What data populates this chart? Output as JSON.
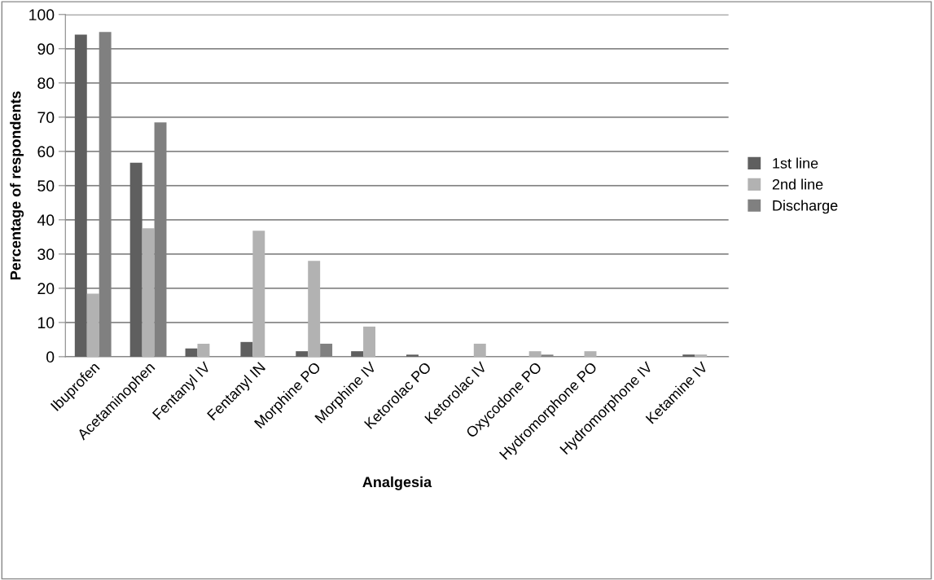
{
  "chart_data": {
    "type": "bar",
    "xlabel": "Analgesia",
    "ylabel": "Percentage of respondents",
    "categories": [
      "Ibuprofen",
      "Acetaminophen",
      "Fentanyl IV",
      "Fentanyl IN",
      "Morphine PO",
      "Morphine IV",
      "Ketorolac PO",
      "Ketorolac IV",
      "Oxycodone PO",
      "Hydromorphone PO",
      "Hydromorphone IV",
      "Ketamine IV"
    ],
    "series": [
      {
        "name": "1st line",
        "color": "#5f5f5f",
        "values": [
          94.1,
          56.7,
          2.4,
          4.3,
          1.6,
          1.6,
          0.6,
          0,
          0,
          0,
          0,
          0.6
        ]
      },
      {
        "name": "2nd line",
        "color": "#b2b2b2",
        "values": [
          18.4,
          37.5,
          3.8,
          36.8,
          28.0,
          8.8,
          0,
          3.8,
          1.6,
          1.6,
          0,
          0.6
        ]
      },
      {
        "name": "Discharge",
        "color": "#808080",
        "values": [
          94.9,
          68.5,
          0,
          0,
          3.8,
          0,
          0,
          0,
          0.6,
          0,
          0,
          0
        ]
      }
    ],
    "ylim": [
      0,
      100
    ],
    "yticks": [
      0,
      10,
      20,
      30,
      40,
      50,
      60,
      70,
      80,
      90,
      100
    ],
    "grid": "y",
    "legend": "right"
  }
}
